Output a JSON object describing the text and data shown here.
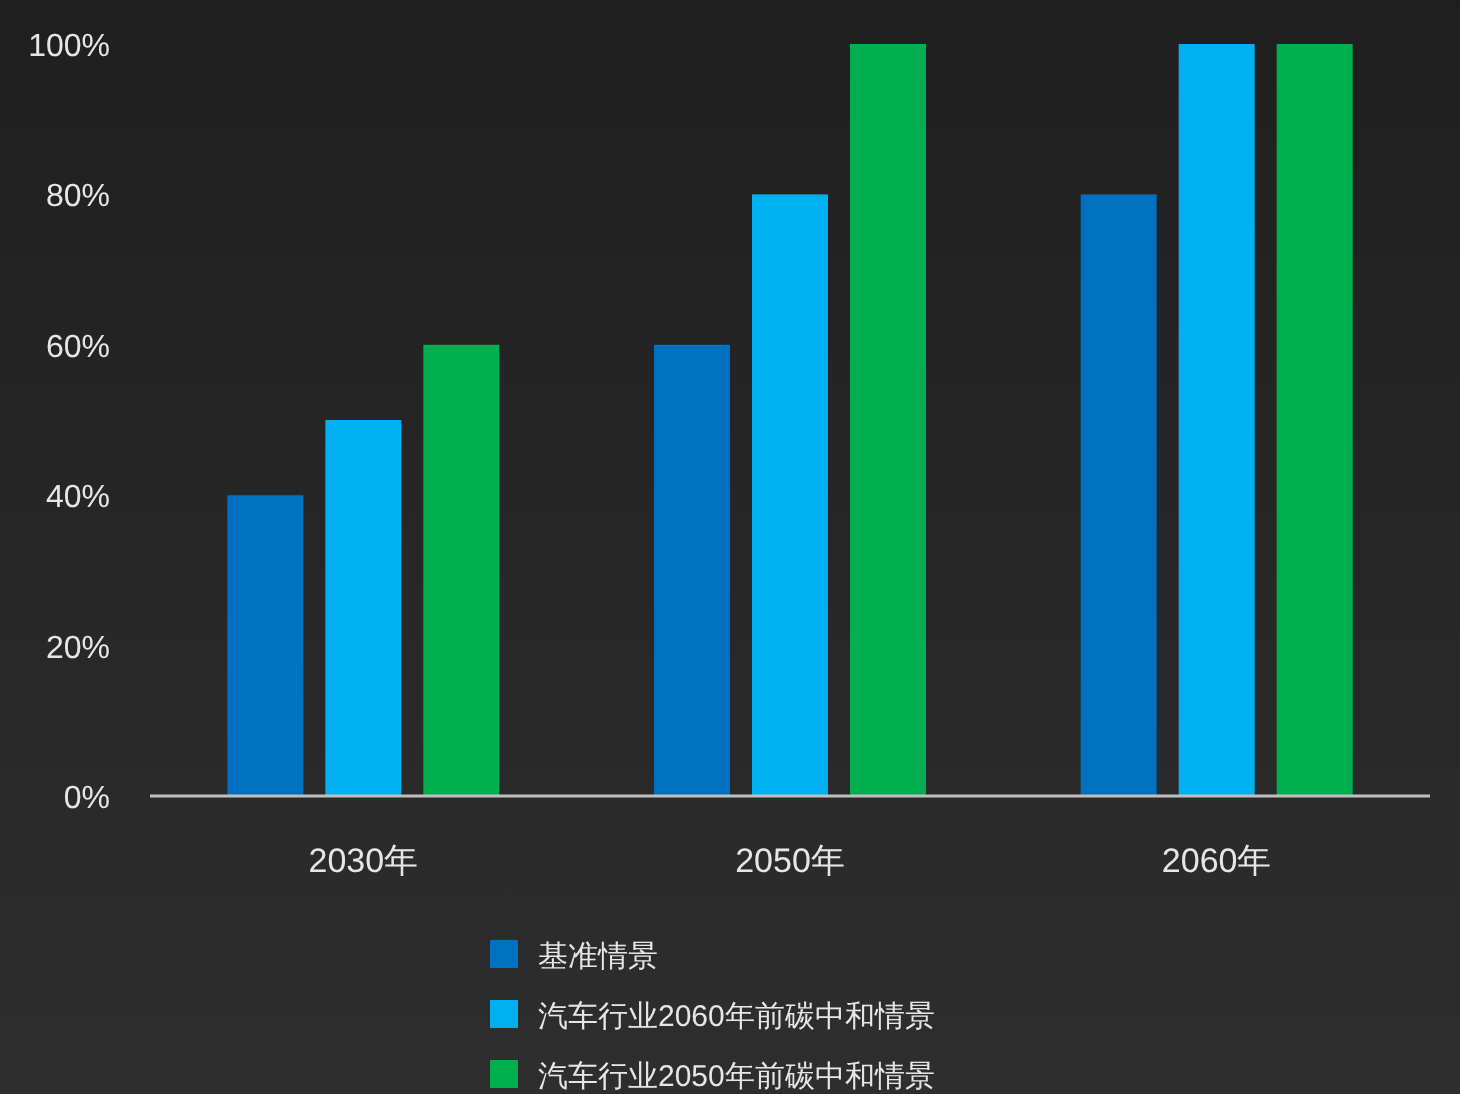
{
  "chart_data": {
    "type": "bar",
    "categories": [
      "2030年",
      "2050年",
      "2060年"
    ],
    "series": [
      {
        "name": "基准情景",
        "color": "#0070c0",
        "values": [
          40,
          60,
          80
        ]
      },
      {
        "name": "汽车行业2060年前碳中和情景",
        "color": "#00b0f0",
        "values": [
          50,
          80,
          100
        ]
      },
      {
        "name": "汽车行业2050年前碳中和情景",
        "color": "#00b050",
        "values": [
          60,
          100,
          100
        ]
      }
    ],
    "ylim": [
      0,
      100
    ],
    "yticks": [
      {
        "value": 0,
        "label": "0%"
      },
      {
        "value": 20,
        "label": "20%"
      },
      {
        "value": 40,
        "label": "40%"
      },
      {
        "value": 60,
        "label": "60%"
      },
      {
        "value": 80,
        "label": "80%"
      },
      {
        "value": 100,
        "label": "100%"
      }
    ],
    "legend": "bottom"
  }
}
